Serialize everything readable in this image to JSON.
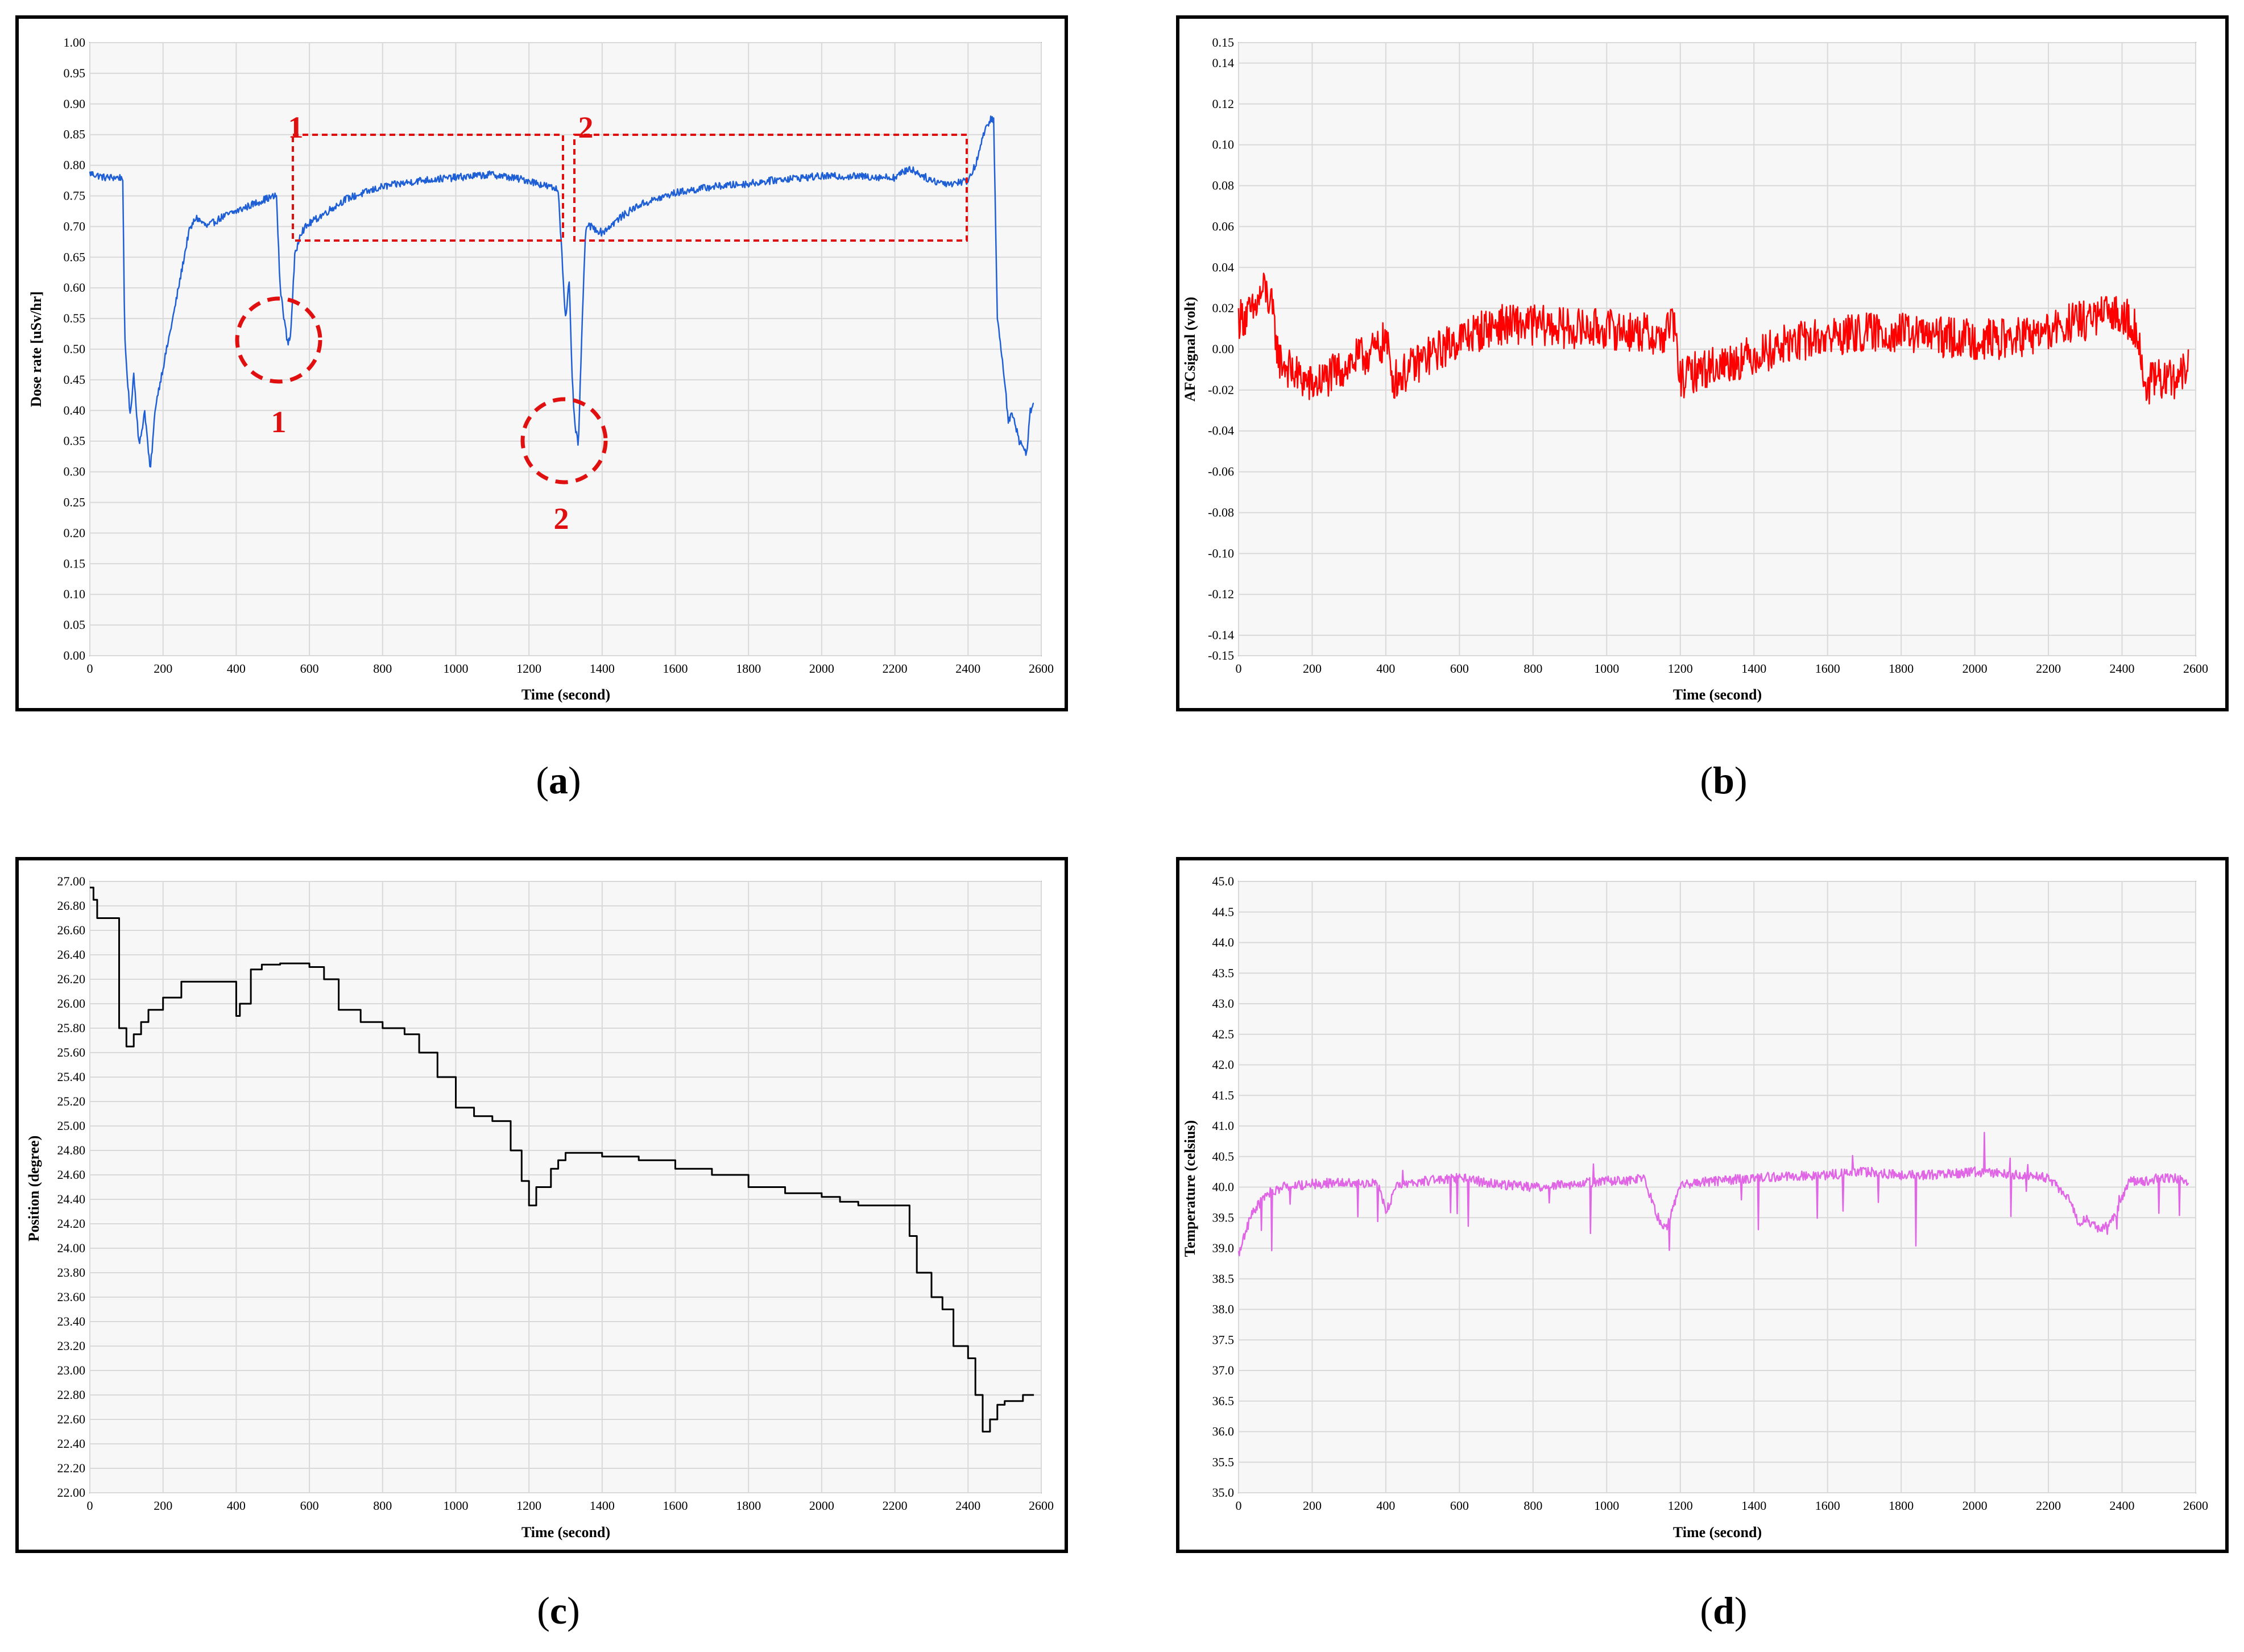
{
  "chart_data": [
    {
      "id": "a",
      "type": "line",
      "panel_label": "a",
      "xlabel": "Time (second)",
      "ylabel": "Dose rate [uSv/hr]",
      "xlim": [
        0,
        2600
      ],
      "ylim": [
        0.0,
        1.0
      ],
      "x_ticks": [
        "0",
        "200",
        "400",
        "600",
        "800",
        "1000",
        "1200",
        "1400",
        "1600",
        "1800",
        "2000",
        "2200",
        "2400",
        "2600"
      ],
      "y_ticks": [
        "0.00",
        "0.05",
        "0.10",
        "0.15",
        "0.20",
        "0.25",
        "0.30",
        "0.35",
        "0.40",
        "0.45",
        "0.50",
        "0.55",
        "0.60",
        "0.65",
        "0.70",
        "0.75",
        "0.80",
        "0.85",
        "0.90",
        "0.95",
        "1.00"
      ],
      "color": "#1f5fd6",
      "noise": 0.006,
      "series": [
        {
          "name": "Dose rate",
          "x": [
            0,
            40,
            90,
            95,
            110,
            120,
            135,
            150,
            165,
            180,
            200,
            230,
            270,
            290,
            320,
            360,
            420,
            480,
            510,
            520,
            540,
            548,
            560,
            575,
            600,
            650,
            700,
            800,
            900,
            1000,
            1100,
            1200,
            1280,
            1300,
            1310,
            1318,
            1325,
            1335,
            1342,
            1355,
            1370,
            1400,
            1450,
            1500,
            1600,
            1700,
            1800,
            1900,
            2000,
            2100,
            2200,
            2240,
            2300,
            2350,
            2400,
            2420,
            2440,
            2460,
            2470,
            2480,
            2500,
            2510,
            2520,
            2540,
            2560,
            2570,
            2580
          ],
          "values": [
            0.787,
            0.78,
            0.78,
            0.52,
            0.39,
            0.46,
            0.34,
            0.4,
            0.3,
            0.41,
            0.47,
            0.56,
            0.69,
            0.715,
            0.7,
            0.715,
            0.73,
            0.745,
            0.75,
            0.6,
            0.51,
            0.52,
            0.65,
            0.69,
            0.705,
            0.725,
            0.745,
            0.765,
            0.775,
            0.78,
            0.785,
            0.775,
            0.76,
            0.55,
            0.61,
            0.45,
            0.38,
            0.34,
            0.48,
            0.7,
            0.7,
            0.69,
            0.715,
            0.735,
            0.755,
            0.765,
            0.77,
            0.778,
            0.782,
            0.782,
            0.78,
            0.795,
            0.775,
            0.77,
            0.775,
            0.8,
            0.845,
            0.875,
            0.875,
            0.55,
            0.45,
            0.38,
            0.4,
            0.35,
            0.33,
            0.4,
            0.41
          ]
        }
      ],
      "annotations": {
        "box_1": "1",
        "box_2": "2",
        "circle_1": "1",
        "circle_2": "2"
      }
    },
    {
      "id": "b",
      "type": "line",
      "panel_label": "b",
      "xlabel": "Time (second)",
      "ylabel": "AFCsignal (volt)",
      "xlim": [
        0,
        2600
      ],
      "ylim": [
        -0.15,
        0.15
      ],
      "x_ticks": [
        "0",
        "200",
        "400",
        "600",
        "800",
        "1000",
        "1200",
        "1400",
        "1600",
        "1800",
        "2000",
        "2200",
        "2400",
        "2600"
      ],
      "y_ticks": [
        "-0.15",
        "-0.14",
        "-0.12",
        "-0.10",
        "-0.08",
        "-0.06",
        "-0.04",
        "-0.02",
        "0.00",
        "0.02",
        "0.04",
        "0.06",
        "0.08",
        "0.10",
        "0.12",
        "0.14",
        "0.15"
      ],
      "color": "#ff0000",
      "noise": 0.01,
      "series": [
        {
          "name": "AFC signal",
          "x": [
            0,
            40,
            70,
            90,
            110,
            150,
            200,
            260,
            320,
            380,
            400,
            420,
            450,
            500,
            600,
            700,
            800,
            900,
            1000,
            1100,
            1150,
            1180,
            1200,
            1250,
            1300,
            1400,
            1500,
            1600,
            1700,
            1800,
            1900,
            2000,
            2100,
            2200,
            2250,
            2300,
            2350,
            2400,
            2440,
            2460,
            2500,
            2540,
            2580
          ],
          "values": [
            0.015,
            0.018,
            0.03,
            0.02,
            -0.005,
            -0.012,
            -0.018,
            -0.012,
            -0.005,
            0.0,
            0.005,
            -0.015,
            -0.012,
            -0.005,
            0.005,
            0.012,
            0.012,
            0.01,
            0.01,
            0.008,
            0.005,
            0.015,
            -0.015,
            -0.01,
            -0.008,
            -0.003,
            0.003,
            0.006,
            0.008,
            0.008,
            0.006,
            0.005,
            0.005,
            0.008,
            0.012,
            0.014,
            0.016,
            0.018,
            0.01,
            -0.018,
            -0.015,
            -0.015,
            -0.01
          ]
        }
      ]
    },
    {
      "id": "c",
      "type": "line",
      "panel_label": "c",
      "xlabel": "Time (second)",
      "ylabel": "Position (degree)",
      "xlim": [
        0,
        2600
      ],
      "ylim": [
        22.0,
        27.0
      ],
      "x_ticks": [
        "0",
        "200",
        "400",
        "600",
        "800",
        "1000",
        "1200",
        "1400",
        "1600",
        "1800",
        "2000",
        "2200",
        "2400",
        "2600"
      ],
      "y_ticks": [
        "22.00",
        "22.20",
        "22.40",
        "22.60",
        "22.80",
        "23.00",
        "23.20",
        "23.40",
        "23.60",
        "23.80",
        "24.00",
        "24.20",
        "24.40",
        "24.60",
        "24.80",
        "25.00",
        "25.20",
        "25.40",
        "25.60",
        "25.80",
        "26.00",
        "26.20",
        "26.40",
        "26.60",
        "26.80",
        "27.00"
      ],
      "color": "#000000",
      "noise": 0,
      "series": [
        {
          "name": "Position",
          "x": [
            0,
            10,
            20,
            50,
            80,
            100,
            120,
            140,
            160,
            200,
            250,
            300,
            390,
            400,
            410,
            440,
            470,
            520,
            560,
            600,
            640,
            680,
            740,
            800,
            860,
            900,
            950,
            1000,
            1050,
            1100,
            1150,
            1180,
            1200,
            1220,
            1260,
            1280,
            1300,
            1350,
            1400,
            1500,
            1600,
            1700,
            1800,
            1900,
            2000,
            2050,
            2100,
            2200,
            2240,
            2260,
            2300,
            2330,
            2360,
            2400,
            2420,
            2440,
            2460,
            2480,
            2500,
            2550,
            2580
          ],
          "values": [
            26.95,
            26.85,
            26.7,
            26.7,
            25.8,
            25.65,
            25.75,
            25.85,
            25.95,
            26.05,
            26.18,
            26.18,
            26.18,
            25.9,
            26.0,
            26.28,
            26.32,
            26.33,
            26.33,
            26.3,
            26.2,
            25.95,
            25.85,
            25.8,
            25.75,
            25.6,
            25.4,
            25.15,
            25.08,
            25.04,
            24.8,
            24.55,
            24.35,
            24.5,
            24.65,
            24.72,
            24.78,
            24.78,
            24.75,
            24.72,
            24.65,
            24.6,
            24.5,
            24.45,
            24.42,
            24.38,
            24.35,
            24.35,
            24.1,
            23.8,
            23.6,
            23.5,
            23.2,
            23.1,
            22.8,
            22.5,
            22.6,
            22.72,
            22.75,
            22.8,
            22.8
          ]
        }
      ]
    },
    {
      "id": "d",
      "type": "line",
      "panel_label": "d",
      "xlabel": "Time (second)",
      "ylabel": "Temperature (celsius)",
      "xlim": [
        0,
        2600
      ],
      "ylim": [
        35.0,
        45.0
      ],
      "x_ticks": [
        "0",
        "200",
        "400",
        "600",
        "800",
        "1000",
        "1200",
        "1400",
        "1600",
        "1800",
        "2000",
        "2200",
        "2400",
        "2600"
      ],
      "y_ticks": [
        "35.0",
        "35.5",
        "36.0",
        "36.5",
        "37.0",
        "37.5",
        "38.0",
        "38.5",
        "39.0",
        "39.5",
        "40.0",
        "40.5",
        "41.0",
        "41.5",
        "42.0",
        "42.5",
        "43.0",
        "43.5",
        "44.0",
        "44.5",
        "45.0"
      ],
      "color": "#e066e6",
      "noise": 0.08,
      "series": [
        {
          "name": "Temperature",
          "x": [
            0,
            20,
            40,
            80,
            120,
            200,
            300,
            380,
            400,
            430,
            500,
            600,
            700,
            800,
            900,
            1000,
            1050,
            1100,
            1140,
            1160,
            1200,
            1300,
            1400,
            1500,
            1600,
            1700,
            1800,
            1900,
            2000,
            2100,
            2200,
            2260,
            2280,
            2300,
            2340,
            2380,
            2420,
            2460,
            2500,
            2540,
            2580
          ],
          "values": [
            38.9,
            39.3,
            39.6,
            39.9,
            40.0,
            40.05,
            40.08,
            40.05,
            39.6,
            40.0,
            40.1,
            40.15,
            40.05,
            40.0,
            40.05,
            40.1,
            40.1,
            40.15,
            39.5,
            39.3,
            40.05,
            40.1,
            40.15,
            40.18,
            40.2,
            40.25,
            40.2,
            40.2,
            40.25,
            40.2,
            40.15,
            39.8,
            39.4,
            39.5,
            39.3,
            39.5,
            40.1,
            40.1,
            40.15,
            40.15,
            40.1
          ]
        }
      ]
    }
  ]
}
